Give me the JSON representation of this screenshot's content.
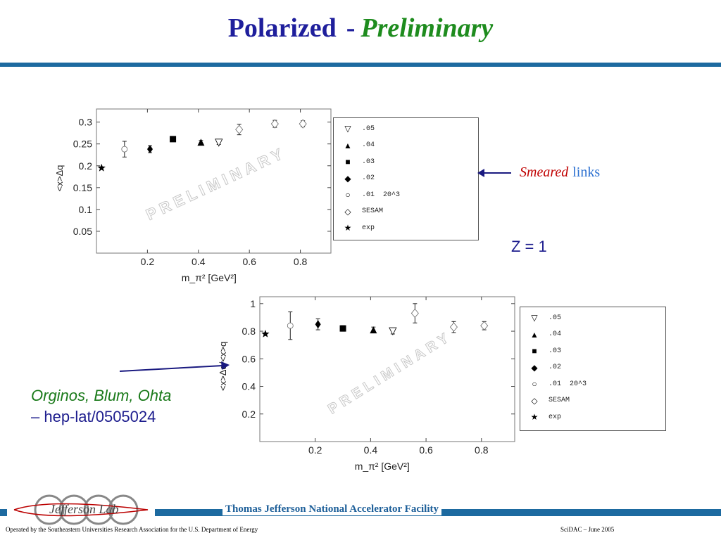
{
  "slide": {
    "title_main": "Polarized",
    "title_sep": "-",
    "title_emphasis": "Preliminary",
    "smeared_word": "Smeared",
    "links_word": "links",
    "z_label": "Z = 1",
    "authors_line1": "Orginos, Blum, Ohta",
    "authors_line2": "– hep-lat/0505024"
  },
  "footer": {
    "facility": "Thomas Jefferson National Accelerator Facility",
    "logo_text": "Jefferson Lab",
    "operated_by": "Operated by the Southeastern Universities Research Association for the U.S. Department of  Energy",
    "event": "SciDAC – June  2005"
  },
  "colors": {
    "title": "#1f1f9c",
    "preliminary": "#1e8c1e",
    "rule": "#1d6aa0",
    "smeared": "#c00000",
    "links": "#2a6fd0"
  },
  "legend_entries": [
    {
      "symbol": "▽",
      "label": ".05"
    },
    {
      "symbol": "▲",
      "label": ".04"
    },
    {
      "symbol": "■",
      "label": ".03"
    },
    {
      "symbol": "◆",
      "label": ".02"
    },
    {
      "symbol": "○",
      "label": ".01  20^3"
    },
    {
      "symbol": "◇",
      "label": "SESAM"
    },
    {
      "symbol": "★",
      "label": "exp"
    }
  ],
  "chart_data": [
    {
      "type": "scatter",
      "title": "",
      "xlabel": "m_π² [GeV²]",
      "ylabel": "<x>Δq",
      "xlim": [
        0.0,
        0.92
      ],
      "ylim": [
        0.0,
        0.33
      ],
      "xticks": [
        0.2,
        0.4,
        0.6,
        0.8
      ],
      "xtick_labels": [
        "0.2",
        "0.4",
        "0.6",
        "0.8"
      ],
      "yticks": [
        0.05,
        0.1,
        0.15,
        0.2,
        0.25,
        0.3
      ],
      "ytick_labels": [
        "0.05",
        "0.1",
        "0.15",
        "0.2",
        "0.25",
        "0.3"
      ],
      "watermark": "PRELIMINARY",
      "series": [
        {
          "name": ".05",
          "marker": "triangle-down",
          "points": [
            {
              "x": 0.48,
              "y": 0.253,
              "err": 0.004
            }
          ]
        },
        {
          "name": ".04",
          "marker": "triangle-up",
          "points": [
            {
              "x": 0.41,
              "y": 0.254,
              "err": 0.004
            }
          ]
        },
        {
          "name": ".03",
          "marker": "square",
          "points": [
            {
              "x": 0.3,
              "y": 0.261,
              "err": 0.004
            }
          ]
        },
        {
          "name": ".02",
          "marker": "diamond",
          "points": [
            {
              "x": 0.21,
              "y": 0.238,
              "err": 0.008
            }
          ]
        },
        {
          "name": ".01  20^3",
          "marker": "circle-open",
          "points": [
            {
              "x": 0.11,
              "y": 0.238,
              "err": 0.018
            }
          ]
        },
        {
          "name": "SESAM",
          "marker": "diamond-open",
          "points": [
            {
              "x": 0.56,
              "y": 0.283,
              "err": 0.012
            },
            {
              "x": 0.7,
              "y": 0.296,
              "err": 0.008
            },
            {
              "x": 0.81,
              "y": 0.296,
              "err": 0.007
            }
          ]
        },
        {
          "name": "exp",
          "marker": "star",
          "points": [
            {
              "x": 0.02,
              "y": 0.195,
              "err": 0
            }
          ]
        }
      ]
    },
    {
      "type": "scatter",
      "title": "",
      "xlabel": "m_π² [GeV²]",
      "ylabel": "<x>Δq/<x>q",
      "xlim": [
        0.0,
        0.92
      ],
      "ylim": [
        0.0,
        1.05
      ],
      "xticks": [
        0.2,
        0.4,
        0.6,
        0.8
      ],
      "xtick_labels": [
        "0.2",
        "0.4",
        "0.6",
        "0.8"
      ],
      "yticks": [
        0.2,
        0.4,
        0.6,
        0.8,
        1.0
      ],
      "ytick_labels": [
        "0.2",
        "0.4",
        "0.6",
        "0.8",
        "1"
      ],
      "watermark": "PRELIMINARY",
      "series": [
        {
          "name": ".05",
          "marker": "triangle-down",
          "points": [
            {
              "x": 0.48,
              "y": 0.8,
              "err": 0.02
            }
          ]
        },
        {
          "name": ".04",
          "marker": "triangle-up",
          "points": [
            {
              "x": 0.41,
              "y": 0.81,
              "err": 0.02
            }
          ]
        },
        {
          "name": ".03",
          "marker": "square",
          "points": [
            {
              "x": 0.3,
              "y": 0.82,
              "err": 0.02
            }
          ]
        },
        {
          "name": ".02",
          "marker": "diamond",
          "points": [
            {
              "x": 0.21,
              "y": 0.85,
              "err": 0.04
            }
          ]
        },
        {
          "name": ".01  20^3",
          "marker": "circle-open",
          "points": [
            {
              "x": 0.11,
              "y": 0.84,
              "err": 0.1
            }
          ]
        },
        {
          "name": "SESAM",
          "marker": "diamond-open",
          "points": [
            {
              "x": 0.56,
              "y": 0.93,
              "err": 0.07
            },
            {
              "x": 0.7,
              "y": 0.83,
              "err": 0.04
            },
            {
              "x": 0.81,
              "y": 0.84,
              "err": 0.03
            }
          ]
        },
        {
          "name": "exp",
          "marker": "star",
          "points": [
            {
              "x": 0.02,
              "y": 0.78,
              "err": 0
            }
          ]
        }
      ]
    }
  ]
}
